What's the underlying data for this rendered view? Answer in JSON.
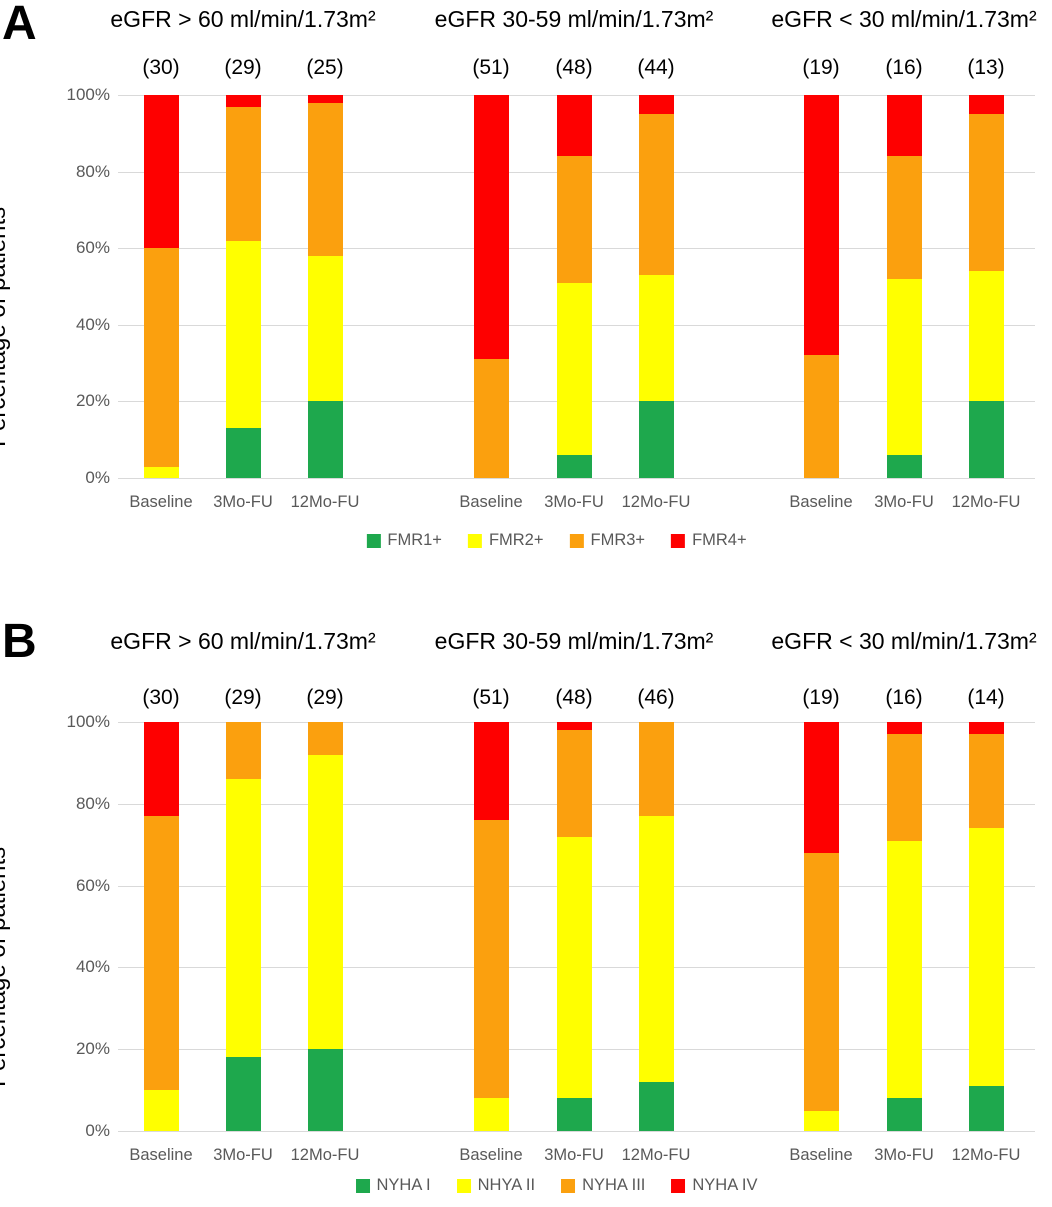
{
  "colors": {
    "green": "#1ea84d",
    "yellow": "#ffff00",
    "orange": "#fba00e",
    "red": "#fe0000",
    "axis_text": "#595959",
    "gridline": "#d9d9d9",
    "title_text": "#000000"
  },
  "chart_data": [
    {
      "type": "bar",
      "stacked": true,
      "panel_label": "A",
      "ylabel": "Percentage of patients",
      "ylim": [
        0,
        100
      ],
      "grid": true,
      "legend_position": "bottom",
      "yticks": [
        "0%",
        "20%",
        "40%",
        "60%",
        "80%",
        "100%"
      ],
      "series_labels": [
        "FMR1+",
        "FMR2+",
        "FMR3+",
        "FMR4+"
      ],
      "series_color_keys": [
        "green",
        "yellow",
        "orange",
        "red"
      ],
      "groups": [
        {
          "title": "eGFR > 60 ml/min/1.73m²",
          "bars": [
            {
              "label": "Baseline",
              "n": "(30)",
              "values": [
                0,
                3,
                57,
                40
              ]
            },
            {
              "label": "3Mo-FU",
              "n": "(29)",
              "values": [
                13,
                49,
                35,
                3
              ]
            },
            {
              "label": "12Mo-FU",
              "n": "(25)",
              "values": [
                20,
                38,
                40,
                2
              ]
            }
          ]
        },
        {
          "title": "eGFR 30-59 ml/min/1.73m²",
          "bars": [
            {
              "label": "Baseline",
              "n": "(51)",
              "values": [
                0,
                0,
                31,
                69
              ]
            },
            {
              "label": "3Mo-FU",
              "n": "(48)",
              "values": [
                6,
                45,
                33,
                16
              ]
            },
            {
              "label": "12Mo-FU",
              "n": "(44)",
              "values": [
                20,
                33,
                42,
                5
              ]
            }
          ]
        },
        {
          "title": "eGFR < 30 ml/min/1.73m²",
          "bars": [
            {
              "label": "Baseline",
              "n": "(19)",
              "values": [
                0,
                0,
                32,
                68
              ]
            },
            {
              "label": "3Mo-FU",
              "n": "(16)",
              "values": [
                6,
                46,
                32,
                16
              ]
            },
            {
              "label": "12Mo-FU",
              "n": "(13)",
              "values": [
                20,
                34,
                41,
                5
              ]
            }
          ]
        }
      ]
    },
    {
      "type": "bar",
      "stacked": true,
      "panel_label": "B",
      "ylabel": "Percentage of patients",
      "ylim": [
        0,
        100
      ],
      "grid": true,
      "legend_position": "bottom",
      "yticks": [
        "0%",
        "20%",
        "40%",
        "60%",
        "80%",
        "100%"
      ],
      "series_labels": [
        "NYHA I",
        "NHYA II",
        "NYHA III",
        "NYHA IV"
      ],
      "series_color_keys": [
        "green",
        "yellow",
        "orange",
        "red"
      ],
      "groups": [
        {
          "title": "eGFR > 60 ml/min/1.73m²",
          "bars": [
            {
              "label": "Baseline",
              "n": "(30)",
              "values": [
                0,
                10,
                67,
                23
              ]
            },
            {
              "label": "3Mo-FU",
              "n": "(29)",
              "values": [
                18,
                68,
                14,
                0
              ]
            },
            {
              "label": "12Mo-FU",
              "n": "(29)",
              "values": [
                20,
                72,
                8,
                0
              ]
            }
          ]
        },
        {
          "title": "eGFR 30-59 ml/min/1.73m²",
          "bars": [
            {
              "label": "Baseline",
              "n": "(51)",
              "values": [
                0,
                8,
                68,
                24
              ]
            },
            {
              "label": "3Mo-FU",
              "n": "(48)",
              "values": [
                8,
                64,
                26,
                2
              ]
            },
            {
              "label": "12Mo-FU",
              "n": "(46)",
              "values": [
                12,
                65,
                23,
                0
              ]
            }
          ]
        },
        {
          "title": "eGFR < 30 ml/min/1.73m²",
          "bars": [
            {
              "label": "Baseline",
              "n": "(19)",
              "values": [
                0,
                5,
                63,
                32
              ]
            },
            {
              "label": "3Mo-FU",
              "n": "(16)",
              "values": [
                8,
                63,
                26,
                3
              ]
            },
            {
              "label": "12Mo-FU",
              "n": "(14)",
              "values": [
                11,
                63,
                23,
                3
              ]
            }
          ]
        }
      ]
    }
  ]
}
